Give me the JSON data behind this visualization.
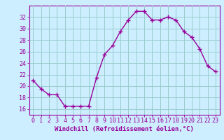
{
  "x": [
    0,
    1,
    2,
    3,
    4,
    5,
    6,
    7,
    8,
    9,
    10,
    11,
    12,
    13,
    14,
    15,
    16,
    17,
    18,
    19,
    20,
    21,
    22,
    23
  ],
  "y": [
    21.0,
    19.5,
    18.5,
    18.5,
    16.5,
    16.5,
    16.5,
    16.5,
    21.5,
    25.5,
    27.0,
    29.5,
    31.5,
    33.0,
    33.0,
    31.5,
    31.5,
    32.0,
    31.5,
    29.5,
    28.5,
    26.5,
    23.5,
    22.5
  ],
  "line_color": "#990099",
  "marker": "+",
  "markersize": 4,
  "linewidth": 1.0,
  "background_color": "#cceeff",
  "grid_color": "#99cccc",
  "ylabel_ticks": [
    16,
    18,
    20,
    22,
    24,
    26,
    28,
    30,
    32
  ],
  "ylim": [
    15.0,
    34.0
  ],
  "xlim": [
    -0.5,
    23.5
  ],
  "xlabel": "Windchill (Refroidissement éolien,°C)",
  "xlabel_fontsize": 6.5,
  "tick_fontsize": 6.0,
  "title": ""
}
